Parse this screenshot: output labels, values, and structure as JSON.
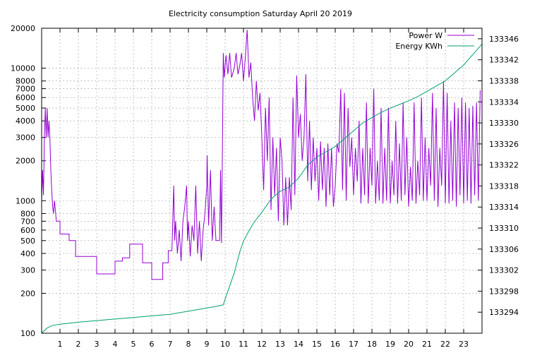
{
  "chart_data": {
    "type": "line",
    "title": "Electricity consumption Saturday April 20 2019",
    "x": {
      "label": "",
      "range": [
        0,
        24
      ],
      "ticks": [
        1,
        2,
        3,
        4,
        5,
        6,
        7,
        8,
        9,
        10,
        11,
        12,
        13,
        14,
        15,
        16,
        17,
        18,
        19,
        20,
        21,
        22,
        23
      ],
      "tick_labels": [
        "1",
        "2",
        "3",
        "4",
        "5",
        "6",
        "7",
        "8",
        "9",
        "10",
        "11",
        "12",
        "13",
        "14",
        "15",
        "16",
        "17",
        "18",
        "19",
        "20",
        "21",
        "22",
        "23"
      ]
    },
    "y_left": {
      "label": "",
      "scale": "log",
      "range": [
        100,
        20000
      ],
      "ticks": [
        100,
        200,
        300,
        400,
        500,
        600,
        700,
        800,
        1000,
        2000,
        3000,
        4000,
        5000,
        6000,
        7000,
        8000,
        10000,
        20000
      ],
      "tick_labels": [
        "100",
        "200",
        "300",
        "400",
        "500",
        "600",
        "700",
        "800",
        "1000",
        "2000",
        "3000",
        "4000",
        "5000",
        "6000",
        "7000",
        "8000",
        "10000",
        "20000"
      ]
    },
    "y_right": {
      "label": "",
      "scale": "linear",
      "range": [
        133290,
        133348
      ],
      "ticks": [
        133294,
        133298,
        133302,
        133306,
        133310,
        133314,
        133318,
        133322,
        133326,
        133330,
        133334,
        133338,
        133342,
        133346
      ],
      "tick_labels": [
        "133294",
        "133298",
        "133302",
        "133306",
        "133310",
        "133314",
        "133318",
        "133322",
        "133326",
        "133330",
        "133334",
        "133338",
        "133342",
        "133346"
      ]
    },
    "grid": true,
    "legend_position": "top-right",
    "series": [
      {
        "name": "Power W",
        "axis": "left",
        "color": "#9400d3",
        "points": [
          [
            0.0,
            1000
          ],
          [
            0.05,
            1700
          ],
          [
            0.1,
            1100
          ],
          [
            0.15,
            3000
          ],
          [
            0.2,
            5000
          ],
          [
            0.25,
            3000
          ],
          [
            0.3,
            5000
          ],
          [
            0.35,
            3000
          ],
          [
            0.4,
            4000
          ],
          [
            0.45,
            3000
          ],
          [
            0.5,
            1700
          ],
          [
            0.55,
            1200
          ],
          [
            0.6,
            900
          ],
          [
            0.65,
            800
          ],
          [
            0.7,
            1000
          ],
          [
            0.75,
            850
          ],
          [
            0.8,
            700
          ],
          [
            1.0,
            700
          ],
          [
            1.0,
            560
          ],
          [
            1.5,
            560
          ],
          [
            1.5,
            500
          ],
          [
            1.85,
            500
          ],
          [
            1.85,
            380
          ],
          [
            3.0,
            380
          ],
          [
            3.0,
            280
          ],
          [
            4.0,
            280
          ],
          [
            4.0,
            350
          ],
          [
            4.4,
            350
          ],
          [
            4.4,
            370
          ],
          [
            4.8,
            370
          ],
          [
            4.8,
            470
          ],
          [
            5.5,
            470
          ],
          [
            5.5,
            340
          ],
          [
            6.0,
            340
          ],
          [
            6.0,
            255
          ],
          [
            6.6,
            255
          ],
          [
            6.6,
            340
          ],
          [
            6.9,
            340
          ],
          [
            6.9,
            420
          ],
          [
            7.1,
            420
          ],
          [
            7.2,
            1300
          ],
          [
            7.25,
            500
          ],
          [
            7.3,
            700
          ],
          [
            7.4,
            400
          ],
          [
            7.5,
            600
          ],
          [
            7.6,
            350
          ],
          [
            7.7,
            700
          ],
          [
            7.8,
            900
          ],
          [
            7.9,
            1300
          ],
          [
            7.95,
            500
          ],
          [
            8.0,
            700
          ],
          [
            8.1,
            380
          ],
          [
            8.2,
            650
          ],
          [
            8.3,
            500
          ],
          [
            8.4,
            1300
          ],
          [
            8.5,
            400
          ],
          [
            8.6,
            700
          ],
          [
            8.7,
            350
          ],
          [
            8.8,
            600
          ],
          [
            8.9,
            800
          ],
          [
            9.0,
            1300
          ],
          [
            9.02,
            2200
          ],
          [
            9.1,
            650
          ],
          [
            9.2,
            1700
          ],
          [
            9.3,
            500
          ],
          [
            9.4,
            900
          ],
          [
            9.5,
            500
          ],
          [
            9.7,
            500
          ],
          [
            9.75,
            1700
          ],
          [
            9.8,
            480
          ],
          [
            9.85,
            2300
          ],
          [
            9.9,
            13000
          ],
          [
            9.95,
            8500
          ],
          [
            10.05,
            12500
          ],
          [
            10.15,
            9000
          ],
          [
            10.25,
            13000
          ],
          [
            10.35,
            8500
          ],
          [
            10.5,
            10000
          ],
          [
            10.6,
            13000
          ],
          [
            10.7,
            9000
          ],
          [
            10.8,
            10500
          ],
          [
            10.9,
            13000
          ],
          [
            11.0,
            8000
          ],
          [
            11.1,
            12000
          ],
          [
            11.2,
            19500
          ],
          [
            11.3,
            8500
          ],
          [
            11.4,
            11000
          ],
          [
            11.5,
            6000
          ],
          [
            11.6,
            4000
          ],
          [
            11.7,
            8000
          ],
          [
            11.8,
            4800
          ],
          [
            11.9,
            6500
          ],
          [
            12.0,
            3000
          ],
          [
            12.1,
            1200
          ],
          [
            12.2,
            5000
          ],
          [
            12.3,
            2000
          ],
          [
            12.4,
            6000
          ],
          [
            12.5,
            850
          ],
          [
            12.6,
            3000
          ],
          [
            12.7,
            1100
          ],
          [
            12.8,
            2500
          ],
          [
            12.9,
            700
          ],
          [
            13.0,
            3000
          ],
          [
            13.1,
            2000
          ],
          [
            13.2,
            650
          ],
          [
            13.3,
            1500
          ],
          [
            13.4,
            650
          ],
          [
            13.5,
            1500
          ],
          [
            13.6,
            850
          ],
          [
            13.7,
            6000
          ],
          [
            13.8,
            1100
          ],
          [
            13.9,
            8800
          ],
          [
            14.0,
            3000
          ],
          [
            14.1,
            4500
          ],
          [
            14.2,
            2000
          ],
          [
            14.3,
            3000
          ],
          [
            14.4,
            9000
          ],
          [
            14.5,
            1400
          ],
          [
            14.6,
            4000
          ],
          [
            14.7,
            1200
          ],
          [
            14.8,
            3000
          ],
          [
            14.9,
            1400
          ],
          [
            15.0,
            2500
          ],
          [
            15.1,
            1000
          ],
          [
            15.2,
            2800
          ],
          [
            15.3,
            1200
          ],
          [
            15.4,
            2500
          ],
          [
            15.5,
            900
          ],
          [
            15.6,
            2700
          ],
          [
            15.7,
            1100
          ],
          [
            15.8,
            2500
          ],
          [
            15.9,
            900
          ],
          [
            16.0,
            1300
          ],
          [
            16.1,
            2700
          ],
          [
            16.2,
            2300
          ],
          [
            16.3,
            7000
          ],
          [
            16.4,
            1200
          ],
          [
            16.5,
            6500
          ],
          [
            16.6,
            1000
          ],
          [
            16.7,
            5000
          ],
          [
            16.8,
            1800
          ],
          [
            16.9,
            3000
          ],
          [
            17.0,
            1100
          ],
          [
            17.1,
            2500
          ],
          [
            17.2,
            1400
          ],
          [
            17.3,
            4000
          ],
          [
            17.4,
            950
          ],
          [
            17.5,
            2500
          ],
          [
            17.6,
            1100
          ],
          [
            17.7,
            5500
          ],
          [
            17.8,
            950
          ],
          [
            17.9,
            2500
          ],
          [
            18.0,
            1300
          ],
          [
            18.1,
            7000
          ],
          [
            18.2,
            950
          ],
          [
            18.3,
            2000
          ],
          [
            18.4,
            1000
          ],
          [
            18.5,
            5000
          ],
          [
            18.6,
            950
          ],
          [
            18.7,
            2500
          ],
          [
            18.8,
            1000
          ],
          [
            18.9,
            5000
          ],
          [
            19.0,
            950
          ],
          [
            19.1,
            2000
          ],
          [
            19.2,
            1100
          ],
          [
            19.3,
            4000
          ],
          [
            19.4,
            950
          ],
          [
            19.5,
            2700
          ],
          [
            19.6,
            1000
          ],
          [
            19.7,
            5500
          ],
          [
            19.8,
            1100
          ],
          [
            19.9,
            3000
          ],
          [
            20.0,
            900
          ],
          [
            20.1,
            1800
          ],
          [
            20.2,
            1000
          ],
          [
            20.3,
            5500
          ],
          [
            20.4,
            950
          ],
          [
            20.5,
            2000
          ],
          [
            20.6,
            1100
          ],
          [
            20.7,
            6000
          ],
          [
            20.8,
            1000
          ],
          [
            20.9,
            3000
          ],
          [
            21.0,
            1000
          ],
          [
            21.1,
            2500
          ],
          [
            21.2,
            1300
          ],
          [
            21.3,
            6500
          ],
          [
            21.4,
            1000
          ],
          [
            21.5,
            5000
          ],
          [
            21.6,
            900
          ],
          [
            21.7,
            2500
          ],
          [
            21.8,
            1300
          ],
          [
            21.9,
            8000
          ],
          [
            22.0,
            950
          ],
          [
            22.1,
            6500
          ],
          [
            22.2,
            950
          ],
          [
            22.3,
            4000
          ],
          [
            22.4,
            1000
          ],
          [
            22.5,
            5500
          ],
          [
            22.6,
            900
          ],
          [
            22.7,
            5000
          ],
          [
            22.8,
            1100
          ],
          [
            22.9,
            6000
          ],
          [
            23.0,
            950
          ],
          [
            23.1,
            5500
          ],
          [
            23.2,
            1000
          ],
          [
            23.3,
            5000
          ],
          [
            23.4,
            950
          ],
          [
            23.5,
            5200
          ],
          [
            23.6,
            1100
          ],
          [
            23.7,
            5500
          ],
          [
            23.8,
            1000
          ],
          [
            23.9,
            6800
          ]
        ]
      },
      {
        "name": "Energy KWh",
        "axis": "right",
        "color": "#009e73",
        "points": [
          [
            0,
            133290
          ],
          [
            0.3,
            133291
          ],
          [
            0.6,
            133291.5
          ],
          [
            1,
            133291.7
          ],
          [
            2,
            133292.1
          ],
          [
            3,
            133292.4
          ],
          [
            4,
            133292.7
          ],
          [
            5,
            133293
          ],
          [
            6,
            133293.3
          ],
          [
            7,
            133293.6
          ],
          [
            8,
            133294.2
          ],
          [
            9,
            133294.8
          ],
          [
            9.5,
            133295.1
          ],
          [
            9.9,
            133295.4
          ],
          [
            10,
            133296.5
          ],
          [
            10.2,
            133298.5
          ],
          [
            10.5,
            133301.5
          ],
          [
            10.8,
            133305.5
          ],
          [
            11,
            133307.5
          ],
          [
            11.3,
            133309.5
          ],
          [
            11.6,
            133311.2
          ],
          [
            12,
            133313
          ],
          [
            12.5,
            133315.5
          ],
          [
            13,
            133317
          ],
          [
            13.5,
            133317.8
          ],
          [
            14,
            133319.5
          ],
          [
            14.5,
            133322
          ],
          [
            15,
            133323.5
          ],
          [
            15.5,
            133324.5
          ],
          [
            16,
            133325.5
          ],
          [
            16.5,
            133327
          ],
          [
            17,
            133328.5
          ],
          [
            17.5,
            133330
          ],
          [
            18,
            133331
          ],
          [
            18.5,
            133332
          ],
          [
            19,
            133332.8
          ],
          [
            19.5,
            133333.5
          ],
          [
            20,
            133334.2
          ],
          [
            20.5,
            133335
          ],
          [
            21,
            133336
          ],
          [
            21.5,
            133337
          ],
          [
            22,
            133338
          ],
          [
            22.5,
            133339.5
          ],
          [
            23,
            133341
          ],
          [
            23.5,
            133343
          ],
          [
            24,
            133345
          ]
        ]
      }
    ]
  }
}
